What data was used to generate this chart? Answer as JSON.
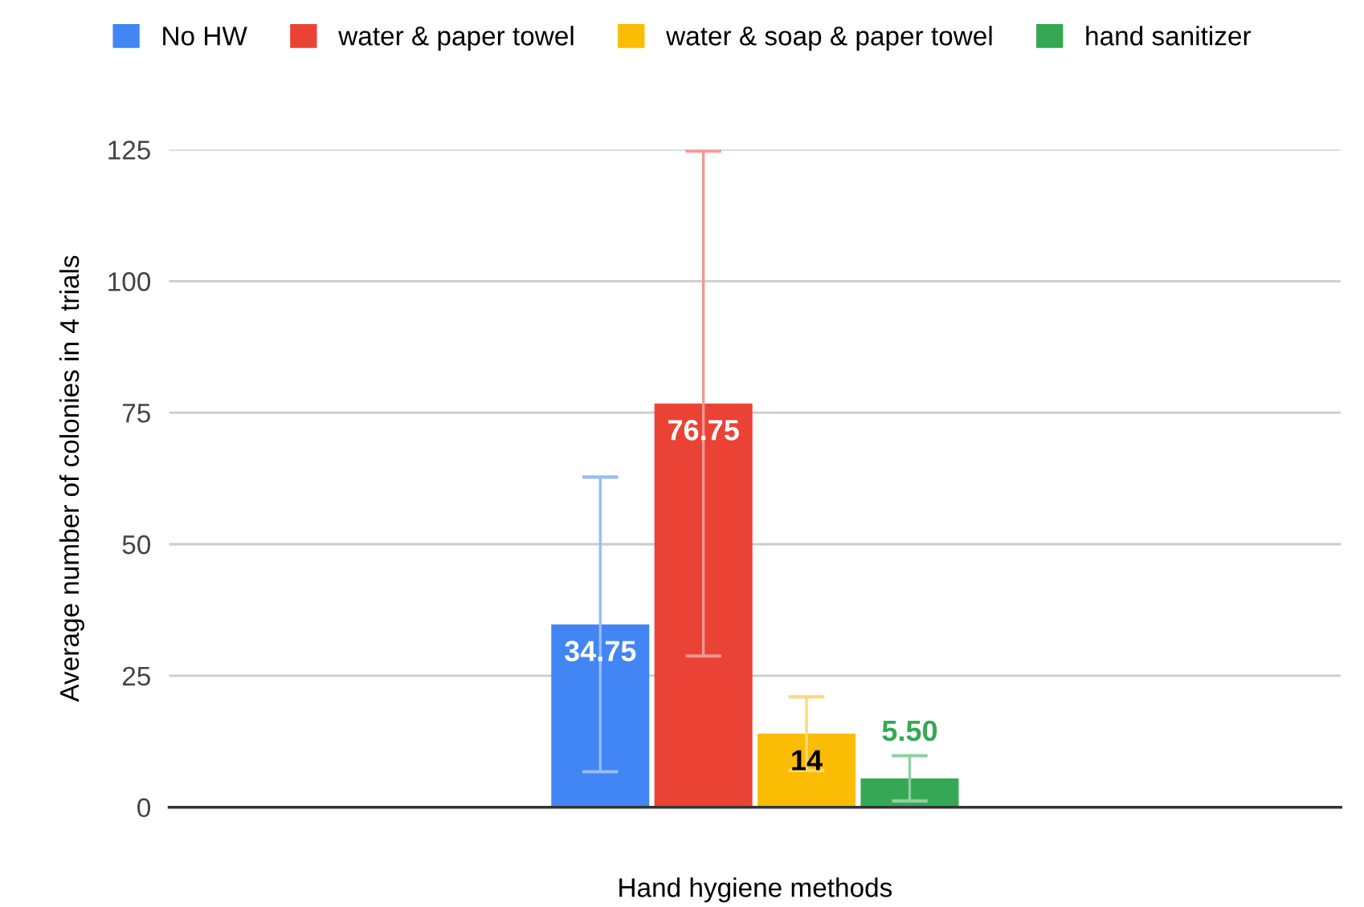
{
  "chart_data": {
    "type": "bar",
    "xlabel": "Hand hygiene methods",
    "ylabel": "Average number of colonies in 4 trials",
    "categories": [
      null
    ],
    "series": [
      {
        "name": "No HW",
        "color": "#4285f4",
        "values": [
          34.75
        ],
        "errors": [
          28
        ],
        "value_labels": [
          "34.75"
        ]
      },
      {
        "name": "water & paper towel",
        "color": "#ea4335",
        "values": [
          76.75
        ],
        "errors": [
          48
        ],
        "value_labels": [
          "76.75"
        ]
      },
      {
        "name": "water & soap & paper towel",
        "color": "#fbbc04",
        "values": [
          14
        ],
        "errors": [
          7
        ],
        "value_labels": [
          "14"
        ]
      },
      {
        "name": "hand sanitizer",
        "color": "#34a853",
        "values": [
          5.5
        ],
        "errors": [
          4.3
        ],
        "value_labels": [
          "5.50"
        ]
      }
    ],
    "ylim": [
      0,
      125
    ],
    "yticks": [
      0,
      25,
      50,
      75,
      100,
      125
    ],
    "grid": "y",
    "legend": "top"
  }
}
